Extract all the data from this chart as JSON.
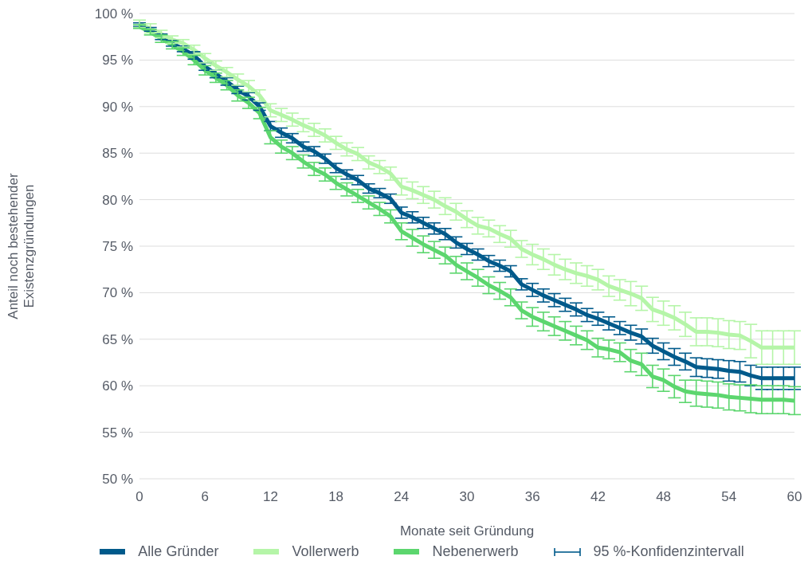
{
  "chart_data": {
    "type": "line",
    "xlabel": "Monate seit Gründung",
    "ylabel": "Anteil noch bestehender Existenzgründungen",
    "x": [
      0,
      1,
      2,
      3,
      4,
      5,
      6,
      7,
      8,
      9,
      10,
      11,
      12,
      13,
      14,
      15,
      16,
      17,
      18,
      19,
      20,
      21,
      22,
      23,
      24,
      25,
      26,
      27,
      28,
      29,
      30,
      31,
      32,
      33,
      34,
      35,
      36,
      37,
      38,
      39,
      40,
      41,
      42,
      43,
      44,
      45,
      46,
      47,
      48,
      49,
      50,
      51,
      52,
      53,
      54,
      55,
      56,
      57,
      58,
      59,
      60
    ],
    "xlim": [
      0,
      60
    ],
    "xticks": [
      0,
      6,
      12,
      18,
      24,
      30,
      36,
      42,
      48,
      54,
      60
    ],
    "ylim": [
      50,
      100
    ],
    "yticks": [
      {
        "value": 50,
        "label": "50 %"
      },
      {
        "value": 55,
        "label": "55 %"
      },
      {
        "value": 60,
        "label": "60 %"
      },
      {
        "value": 65,
        "label": "65 %"
      },
      {
        "value": 70,
        "label": "70 %"
      },
      {
        "value": 75,
        "label": "75 %"
      },
      {
        "value": 80,
        "label": "80 %"
      },
      {
        "value": 85,
        "label": "85 %"
      },
      {
        "value": 90,
        "label": "90 %"
      },
      {
        "value": 95,
        "label": "95 %"
      },
      {
        "value": 100,
        "label": "100 %"
      }
    ],
    "grid": "y",
    "legend": "bottom",
    "marker": "none",
    "line_style": "solid",
    "annotations": [
      "95 %-Konfidenzintervall"
    ],
    "series": [
      {
        "name": "Alle Gründer",
        "color": "#005a8b",
        "values": [
          98.8,
          98.3,
          97.5,
          96.8,
          96.2,
          95.5,
          94.3,
          93.5,
          92.7,
          91.8,
          91.1,
          90.0,
          87.9,
          87.2,
          86.6,
          85.7,
          85.2,
          84.4,
          83.4,
          82.7,
          82.1,
          81.2,
          80.7,
          80.1,
          78.6,
          78.1,
          77.5,
          76.9,
          76.3,
          75.4,
          74.7,
          74.1,
          73.4,
          72.9,
          72.3,
          70.9,
          70.3,
          69.7,
          69.2,
          68.7,
          68.2,
          67.6,
          67.2,
          66.7,
          66.2,
          65.7,
          65.3,
          64.3,
          63.7,
          63.1,
          62.6,
          62.0,
          61.9,
          61.8,
          61.6,
          61.5,
          61.1,
          60.8,
          60.8,
          60.8,
          60.8
        ],
        "errors": [
          0.2,
          0.2,
          0.3,
          0.3,
          0.3,
          0.4,
          0.4,
          0.4,
          0.4,
          0.4,
          0.4,
          0.4,
          0.5,
          0.5,
          0.5,
          0.5,
          0.5,
          0.5,
          0.5,
          0.5,
          0.5,
          0.5,
          0.5,
          0.5,
          0.6,
          0.6,
          0.6,
          0.6,
          0.6,
          0.6,
          0.6,
          0.6,
          0.6,
          0.6,
          0.6,
          0.6,
          0.7,
          0.7,
          0.7,
          0.7,
          0.7,
          0.7,
          0.7,
          0.7,
          0.7,
          0.8,
          0.8,
          0.8,
          0.9,
          0.9,
          0.9,
          1.0,
          1.0,
          1.0,
          1.1,
          1.1,
          1.1,
          1.2,
          1.2,
          1.2,
          1.2
        ]
      },
      {
        "name": "Vollerwerb",
        "color": "#b5f5a8",
        "values": [
          98.9,
          98.4,
          97.8,
          97.2,
          96.8,
          96.1,
          95.2,
          94.4,
          93.7,
          92.9,
          92.2,
          91.2,
          89.6,
          89.1,
          88.6,
          88.0,
          87.5,
          86.9,
          86.1,
          85.4,
          84.9,
          84.0,
          83.5,
          82.8,
          81.4,
          81.0,
          80.5,
          80.0,
          79.3,
          78.7,
          77.9,
          77.2,
          76.9,
          76.3,
          75.8,
          74.7,
          74.1,
          73.6,
          73.0,
          72.5,
          72.1,
          71.8,
          71.4,
          70.7,
          70.3,
          69.9,
          69.4,
          68.2,
          67.8,
          67.3,
          66.6,
          65.8,
          65.8,
          65.7,
          65.5,
          65.4,
          64.8,
          64.1,
          64.1,
          64.1,
          64.1
        ],
        "errors": [
          0.4,
          0.5,
          0.4,
          0.4,
          0.4,
          0.5,
          0.5,
          0.5,
          0.5,
          0.6,
          0.6,
          0.6,
          0.7,
          0.7,
          0.7,
          0.7,
          0.7,
          0.7,
          0.7,
          0.7,
          0.7,
          0.7,
          0.7,
          0.7,
          0.9,
          0.9,
          0.9,
          0.9,
          0.9,
          0.9,
          0.9,
          0.9,
          0.9,
          0.9,
          0.9,
          0.9,
          1.1,
          1.1,
          1.1,
          1.1,
          1.1,
          1.1,
          1.1,
          1.1,
          1.1,
          1.3,
          1.3,
          1.3,
          1.3,
          1.3,
          1.3,
          1.5,
          1.5,
          1.5,
          1.5,
          1.5,
          1.8,
          1.8,
          1.8,
          1.8,
          1.8
        ]
      },
      {
        "name": "Nebenerwerb",
        "color": "#5cd66e",
        "values": [
          98.6,
          98.0,
          97.3,
          96.6,
          95.9,
          95.0,
          93.9,
          93.1,
          92.3,
          91.2,
          90.4,
          89.3,
          86.7,
          85.7,
          85.0,
          84.1,
          83.3,
          82.7,
          81.8,
          81.1,
          80.4,
          79.7,
          79.0,
          78.2,
          76.6,
          75.9,
          75.2,
          74.6,
          74.0,
          73.0,
          72.3,
          71.6,
          70.8,
          70.2,
          69.5,
          68.1,
          67.4,
          66.9,
          66.4,
          65.9,
          65.4,
          64.9,
          64.1,
          63.9,
          63.6,
          62.7,
          62.3,
          61.0,
          60.6,
          59.9,
          59.4,
          59.2,
          59.1,
          59.0,
          58.8,
          58.7,
          58.6,
          58.5,
          58.5,
          58.5,
          58.4
        ],
        "errors": [
          0.2,
          0.3,
          0.4,
          0.4,
          0.4,
          0.5,
          0.5,
          0.5,
          0.5,
          0.6,
          0.6,
          0.6,
          0.7,
          0.7,
          0.7,
          0.7,
          0.7,
          0.7,
          0.7,
          0.7,
          0.7,
          0.7,
          0.7,
          0.7,
          0.9,
          0.9,
          0.9,
          0.9,
          0.9,
          0.9,
          0.9,
          0.9,
          0.9,
          0.9,
          0.9,
          0.9,
          1.0,
          1.0,
          1.0,
          1.0,
          1.0,
          1.0,
          1.0,
          1.0,
          1.0,
          1.2,
          1.2,
          1.2,
          1.2,
          1.2,
          1.2,
          1.4,
          1.4,
          1.4,
          1.4,
          1.4,
          1.5,
          1.5,
          1.5,
          1.5,
          1.5
        ]
      }
    ]
  }
}
